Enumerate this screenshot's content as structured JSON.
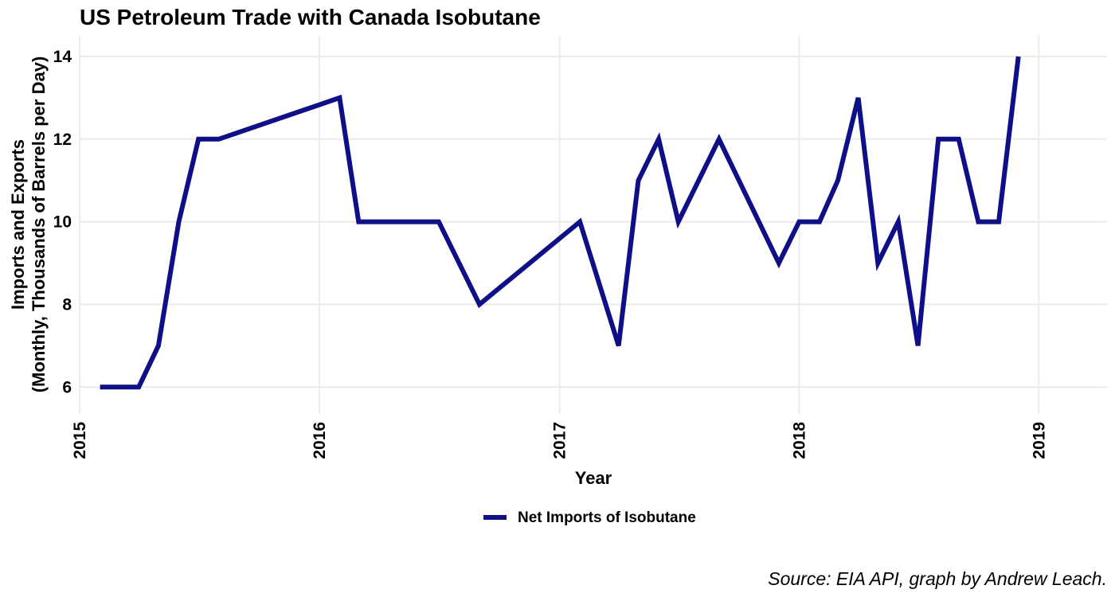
{
  "chart_data": {
    "type": "line",
    "title": "US Petroleum Trade with Canada Isobutane",
    "xlabel": "Year",
    "ylabel_line1": "Imports and Exports",
    "ylabel_line2": "(Monthly, Thousands of Barrels per Day)",
    "caption": "Source: EIA API, graph by Andrew Leach.",
    "x_ticks": [
      "2015",
      "2016",
      "2017",
      "2018",
      "2019"
    ],
    "y_ticks": [
      6,
      8,
      10,
      12,
      14
    ],
    "xlim": [
      "2015-01-01",
      "2019-04-15"
    ],
    "ylim": [
      5.35,
      14.5
    ],
    "legend_position": "bottom",
    "series": [
      {
        "name": "Net Imports of Isobutane",
        "color": "#0f0f87",
        "points": [
          [
            "2015-02-01",
            6
          ],
          [
            "2015-03-01",
            6
          ],
          [
            "2015-04-01",
            6
          ],
          [
            "2015-05-01",
            7
          ],
          [
            "2015-06-01",
            10
          ],
          [
            "2015-07-01",
            12
          ],
          [
            "2015-08-01",
            12
          ],
          [
            "2016-02-01",
            13
          ],
          [
            "2016-03-01",
            10
          ],
          [
            "2016-07-01",
            10
          ],
          [
            "2016-09-01",
            8
          ],
          [
            "2017-02-01",
            10
          ],
          [
            "2017-04-01",
            7
          ],
          [
            "2017-05-01",
            11
          ],
          [
            "2017-06-01",
            12
          ],
          [
            "2017-07-01",
            10
          ],
          [
            "2017-09-01",
            12
          ],
          [
            "2017-12-01",
            9
          ],
          [
            "2018-01-01",
            10
          ],
          [
            "2018-02-01",
            10
          ],
          [
            "2018-03-01",
            11
          ],
          [
            "2018-04-01",
            13
          ],
          [
            "2018-05-01",
            9
          ],
          [
            "2018-06-01",
            10
          ],
          [
            "2018-07-01",
            7
          ],
          [
            "2018-08-01",
            12
          ],
          [
            "2018-09-01",
            12
          ],
          [
            "2018-10-01",
            10
          ],
          [
            "2018-11-01",
            10
          ],
          [
            "2018-12-01",
            14
          ]
        ]
      }
    ]
  }
}
